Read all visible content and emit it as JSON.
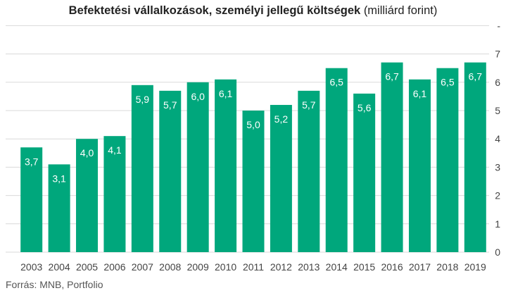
{
  "title_main": "Befektetési vállalkozások, személyi jellegű költségek",
  "title_unit": "(milliárd forint)",
  "source": "Forrás: MNB, Portfolio",
  "bar_color": "#00a77c",
  "grid_color": "#d9d9d9",
  "chart_data": {
    "type": "bar",
    "title": "Befektetési vállalkozások, személyi jellegű költségek (milliárd forint)",
    "categories": [
      "2003",
      "2004",
      "2005",
      "2006",
      "2007",
      "2008",
      "2009",
      "2010",
      "2011",
      "2012",
      "2013",
      "2014",
      "2015",
      "2016",
      "2017",
      "2018",
      "2019"
    ],
    "values": [
      3.7,
      3.1,
      4.0,
      4.1,
      5.9,
      5.7,
      6.0,
      6.1,
      5.0,
      5.2,
      5.7,
      6.5,
      5.6,
      6.7,
      6.1,
      6.5,
      6.7
    ],
    "value_labels": [
      "3,7",
      "3,1",
      "4,0",
      "4,1",
      "5,9",
      "5,7",
      "6,0",
      "6,1",
      "5,0",
      "5,2",
      "5,7",
      "6,5",
      "5,6",
      "6,7",
      "6,1",
      "6,5",
      "6,7"
    ],
    "ylim": [
      0,
      8
    ],
    "yticks": [
      0,
      1,
      2,
      3,
      4,
      5,
      6,
      7
    ],
    "ytick_labels": [
      "0",
      "1",
      "2",
      "3",
      "4",
      "5",
      "6",
      "7"
    ],
    "top_tick_label": "-",
    "y_axis_side": "right",
    "grid": true,
    "legend": "none"
  }
}
